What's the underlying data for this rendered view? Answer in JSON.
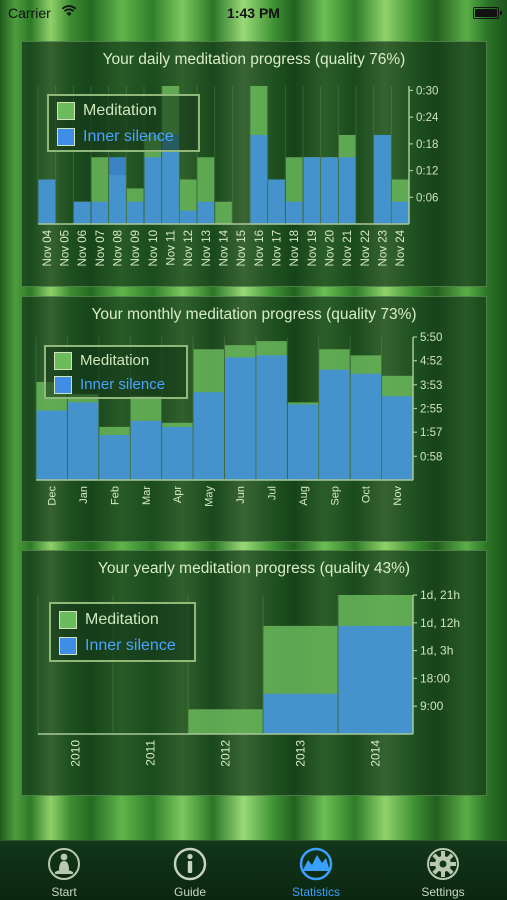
{
  "status_bar": {
    "carrier": "Carrier",
    "time": "1:43 PM"
  },
  "colors": {
    "meditation": "#6cbc5e",
    "inner_silence": "#3f8de6",
    "tab_active": "#3aa0ff"
  },
  "legend": {
    "meditation": "Meditation",
    "inner_silence": "Inner silence"
  },
  "daily": {
    "title": "Your daily meditation progress (quality 76%)",
    "chart_data": {
      "type": "bar",
      "categories": [
        "Nov 04",
        "Nov 05",
        "Nov 06",
        "Nov 07",
        "Nov 08",
        "Nov 09",
        "Nov 10",
        "Nov 11",
        "Nov 12",
        "Nov 13",
        "Nov 14",
        "Nov 15",
        "Nov 16",
        "Nov 17",
        "Nov 18",
        "Nov 19",
        "Nov 20",
        "Nov 21",
        "Nov 22",
        "Nov 23",
        "Nov 24"
      ],
      "y_tick_labels": [
        "0:30",
        "0:24",
        "0:18",
        "0:12",
        "0:06"
      ],
      "y_tick_values": [
        30,
        24,
        18,
        12,
        6
      ],
      "ylim": [
        0,
        31
      ],
      "y_unit": "minutes",
      "series": [
        {
          "name": "Meditation",
          "values": [
            10,
            0,
            5,
            15,
            11,
            8,
            20,
            31,
            10,
            15,
            5,
            0,
            31,
            10,
            15,
            15,
            15,
            20,
            0,
            20,
            10
          ]
        },
        {
          "name": "Inner silence",
          "values": [
            10,
            0,
            5,
            5,
            15,
            5,
            15,
            20,
            3,
            5,
            0,
            0,
            20,
            10,
            5,
            15,
            15,
            15,
            0,
            20,
            5
          ]
        }
      ]
    }
  },
  "monthly": {
    "title": "Your monthly meditation progress (quality 73%)",
    "chart_data": {
      "type": "bar",
      "categories": [
        "Dec",
        "Jan",
        "Feb",
        "Mar",
        "Apr",
        "May",
        "Jun",
        "Jul",
        "Aug",
        "Sep",
        "Oct",
        "Nov"
      ],
      "y_tick_labels": [
        "5:50",
        "4:52",
        "3:53",
        "2:55",
        "1:57",
        "0:58"
      ],
      "y_tick_values": [
        350,
        292,
        233,
        175,
        117,
        58
      ],
      "ylim": [
        0,
        350
      ],
      "y_unit": "minutes",
      "series": [
        {
          "name": "Meditation",
          "values": [
            240,
            210,
            130,
            205,
            140,
            320,
            330,
            340,
            190,
            320,
            305,
            255
          ]
        },
        {
          "name": "Inner silence",
          "values": [
            170,
            190,
            110,
            145,
            130,
            215,
            300,
            305,
            185,
            270,
            260,
            205
          ]
        }
      ]
    }
  },
  "yearly": {
    "title": "Your yearly meditation progress (quality 43%)",
    "chart_data": {
      "type": "bar",
      "categories": [
        "2010",
        "2011",
        "2012",
        "2013",
        "2014"
      ],
      "y_tick_labels": [
        "1d, 21h",
        "1d, 12h",
        "1d, 3h",
        "18:00",
        "9:00"
      ],
      "y_tick_values": [
        45,
        36,
        27,
        18,
        9
      ],
      "ylim": [
        0,
        45
      ],
      "y_unit": "hours",
      "series": [
        {
          "name": "Meditation",
          "values": [
            0,
            0,
            8,
            35,
            45
          ]
        },
        {
          "name": "Inner silence",
          "values": [
            0,
            0,
            0,
            13,
            35
          ]
        }
      ]
    }
  },
  "tabs": [
    {
      "label": "Start",
      "icon": "meditator-icon",
      "active": false
    },
    {
      "label": "Guide",
      "icon": "info-icon",
      "active": false
    },
    {
      "label": "Statistics",
      "icon": "chart-icon",
      "active": true
    },
    {
      "label": "Settings",
      "icon": "gear-icon",
      "active": false
    }
  ]
}
